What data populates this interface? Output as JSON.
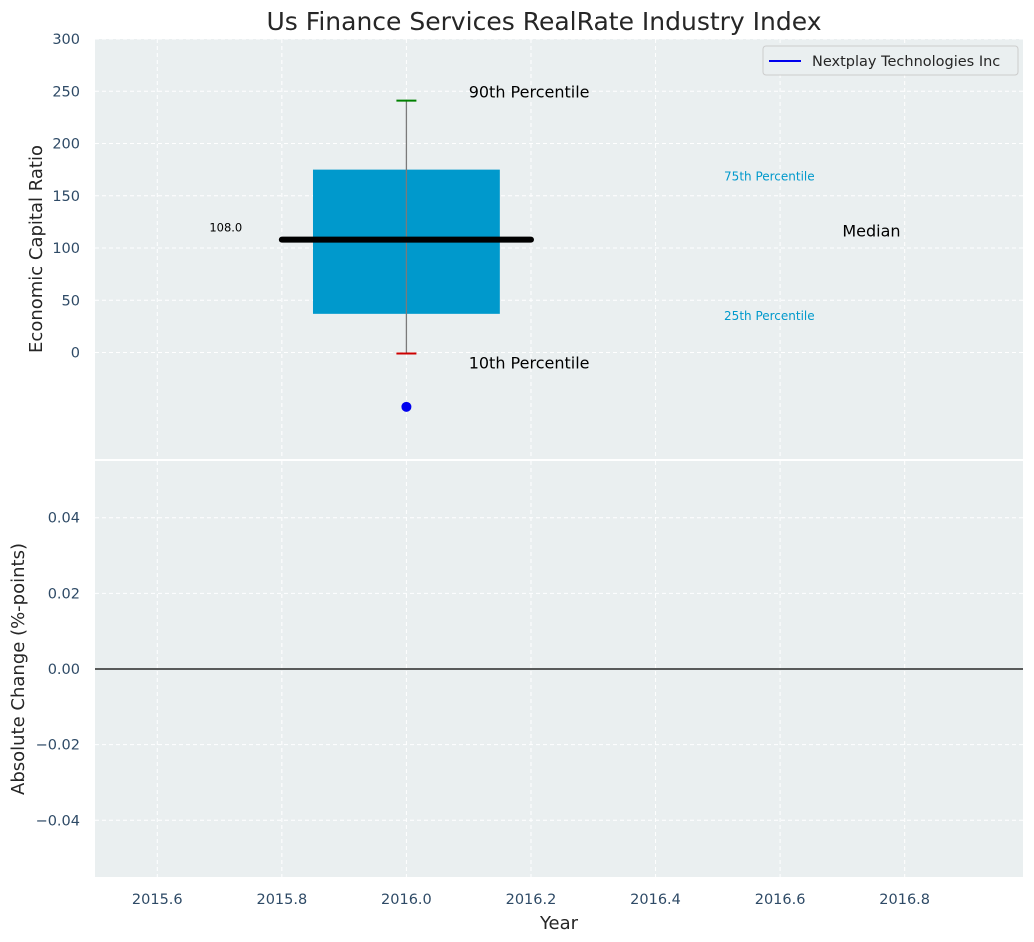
{
  "chart_data": [
    {
      "type": "box",
      "title": "Us Finance Services RealRate Industry Index",
      "xlabel": "",
      "ylabel": "Economic Capital Ratio",
      "ylim": [
        -105,
        300
      ],
      "yticks": [
        0,
        50,
        100,
        150,
        200,
        250,
        300
      ],
      "grid": true,
      "legend": {
        "placement": "top-right",
        "entries": [
          {
            "name": "Nextplay Technologies Inc",
            "color": "#0000ee"
          }
        ]
      },
      "box": {
        "x": 2016.0,
        "p10": -1,
        "p25": 37,
        "median": 108,
        "p75": 175,
        "p90": 241,
        "color": "#0099cc",
        "median_color": "#000000",
        "p90_cap_color": "#008000",
        "p10_cap_color": "#cc0000"
      },
      "median_value_label": "108.0",
      "point": {
        "name": "Nextplay Technologies Inc",
        "x": 2016.0,
        "y": -52,
        "color": "#0000ee"
      },
      "annotations": {
        "p90": "90th Percentile",
        "p10": "10th Percentile",
        "p75": "75th Percentile",
        "p25": "25th Percentile",
        "median": "Median"
      }
    },
    {
      "type": "line",
      "xlabel": "Year",
      "ylabel": "Absolute Change (%-points)",
      "xlim": [
        2015.5,
        2016.99
      ],
      "xticks": [
        2015.6,
        2015.8,
        2016.0,
        2016.2,
        2016.4,
        2016.6,
        2016.8
      ],
      "ylim": [
        -0.055,
        0.055
      ],
      "yticks": [
        -0.04,
        -0.02,
        0.0,
        0.02,
        0.04
      ],
      "ytick_labels": [
        "−0.04",
        "−0.02",
        "0.00",
        "0.02",
        "0.04"
      ],
      "grid": true,
      "zero_line": 0
    }
  ]
}
